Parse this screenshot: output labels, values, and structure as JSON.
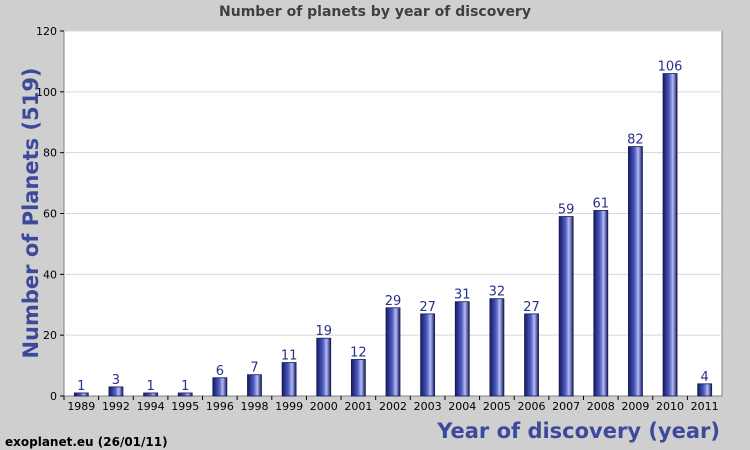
{
  "chart_data": {
    "type": "bar",
    "title": "Number of planets by year of discovery",
    "xlabel": "Year of discovery (year)",
    "ylabel": "Number of Planets (519)",
    "categories": [
      "1989",
      "1992",
      "1994",
      "1995",
      "1996",
      "1998",
      "1999",
      "2000",
      "2001",
      "2002",
      "2003",
      "2004",
      "2005",
      "2006",
      "2007",
      "2008",
      "2009",
      "2010",
      "2011"
    ],
    "values": [
      1,
      3,
      1,
      1,
      6,
      7,
      11,
      19,
      12,
      29,
      27,
      31,
      32,
      27,
      59,
      61,
      82,
      106,
      4
    ],
    "ylim": [
      0,
      120
    ],
    "yticks": [
      0,
      20,
      40,
      60,
      80,
      100,
      120
    ],
    "grid": true,
    "legend": "none",
    "colors": {
      "bar_dark": "#151a5e",
      "bar_mid": "#4f5cc4",
      "bar_light": "#b4bcf2",
      "label": "#3d4a9c",
      "plot_bg": "#ffffff",
      "page_bg": "#cfcfcf"
    }
  },
  "credit": "exoplanet.eu (26/01/11)"
}
